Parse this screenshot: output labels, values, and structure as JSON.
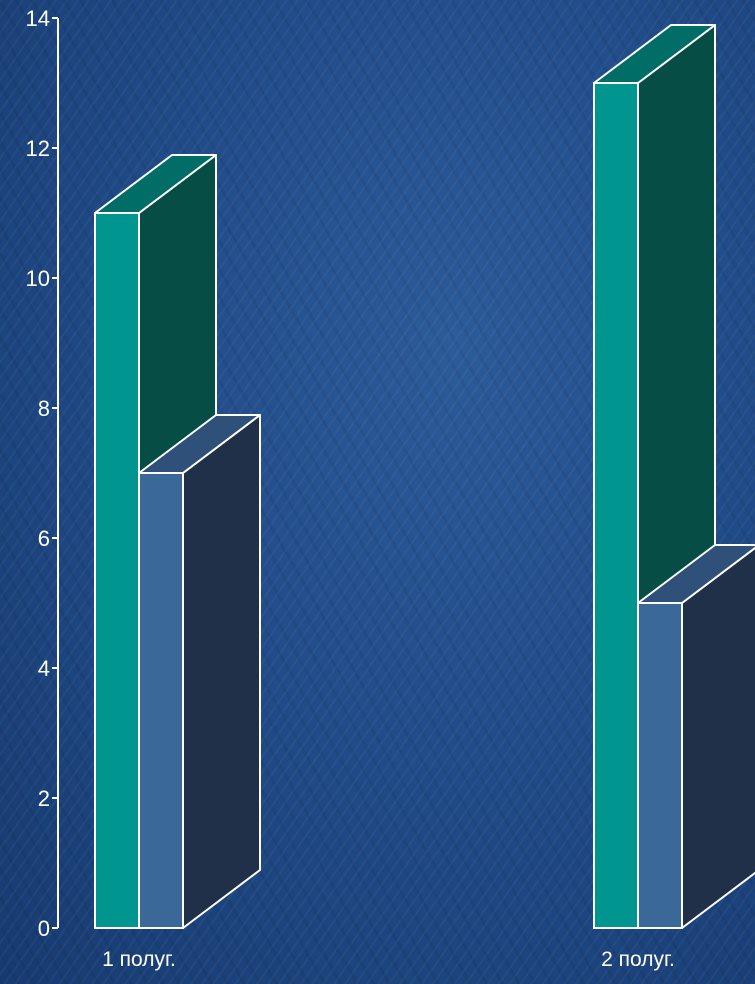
{
  "chart_data": {
    "type": "bar",
    "title": "",
    "xlabel": "",
    "ylabel": "",
    "categories": [
      "1 полуг.",
      "2 полуг."
    ],
    "series": [
      {
        "values": [
          11,
          13
        ]
      },
      {
        "values": [
          7,
          5
        ]
      }
    ],
    "ylim": [
      0,
      14
    ],
    "yticks": [
      0,
      2,
      4,
      6,
      8,
      10,
      12,
      14
    ],
    "yticklabels": [
      "0",
      "2",
      "4",
      "6",
      "8",
      "10",
      "12",
      "14"
    ],
    "grid": false,
    "legend": "none",
    "style": "3d-bar",
    "colors": {
      "series_front": [
        "#00968f",
        "#3a6899"
      ],
      "series_side": [
        "#064d46",
        "#1f3048"
      ],
      "series_top": [
        "#006d66",
        "#2e5079"
      ],
      "outline": "#ffffff",
      "axis": "#ffffff"
    }
  }
}
